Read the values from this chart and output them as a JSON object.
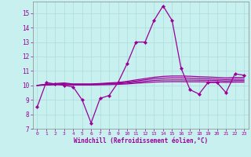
{
  "xlabel": "Windchill (Refroidissement éolien,°C)",
  "bg_color": "#c8f0ee",
  "line_color": "#990099",
  "grid_color": "#aadddd",
  "xlim": [
    -0.5,
    23.5
  ],
  "ylim": [
    7,
    15.8
  ],
  "yticks": [
    7,
    8,
    9,
    10,
    11,
    12,
    13,
    14,
    15
  ],
  "xticks": [
    0,
    1,
    2,
    3,
    4,
    5,
    6,
    7,
    8,
    9,
    10,
    11,
    12,
    13,
    14,
    15,
    16,
    17,
    18,
    19,
    20,
    21,
    22,
    23
  ],
  "series": [
    [
      8.5,
      10.2,
      10.1,
      10.0,
      9.9,
      9.0,
      7.4,
      9.1,
      9.3,
      10.2,
      11.5,
      13.0,
      13.0,
      14.5,
      15.5,
      14.5,
      11.2,
      9.7,
      9.4,
      10.2,
      10.2,
      9.5,
      10.8,
      10.7
    ],
    [
      10.0,
      10.08,
      10.13,
      10.17,
      10.1,
      10.1,
      10.1,
      10.13,
      10.17,
      10.2,
      10.28,
      10.38,
      10.47,
      10.56,
      10.62,
      10.65,
      10.65,
      10.63,
      10.6,
      10.58,
      10.55,
      10.52,
      10.55,
      10.55
    ],
    [
      10.0,
      10.06,
      10.1,
      10.12,
      10.08,
      10.08,
      10.08,
      10.1,
      10.13,
      10.16,
      10.22,
      10.3,
      10.38,
      10.46,
      10.5,
      10.52,
      10.52,
      10.5,
      10.48,
      10.46,
      10.43,
      10.4,
      10.43,
      10.43
    ],
    [
      10.0,
      10.04,
      10.07,
      10.08,
      10.05,
      10.05,
      10.05,
      10.07,
      10.09,
      10.11,
      10.16,
      10.22,
      10.28,
      10.34,
      10.37,
      10.38,
      10.38,
      10.37,
      10.36,
      10.35,
      10.33,
      10.3,
      10.33,
      10.33
    ],
    [
      10.0,
      10.02,
      10.04,
      10.05,
      10.03,
      10.03,
      10.03,
      10.04,
      10.05,
      10.07,
      10.1,
      10.15,
      10.19,
      10.23,
      10.25,
      10.26,
      10.26,
      10.25,
      10.25,
      10.24,
      10.23,
      10.21,
      10.23,
      10.23
    ]
  ]
}
